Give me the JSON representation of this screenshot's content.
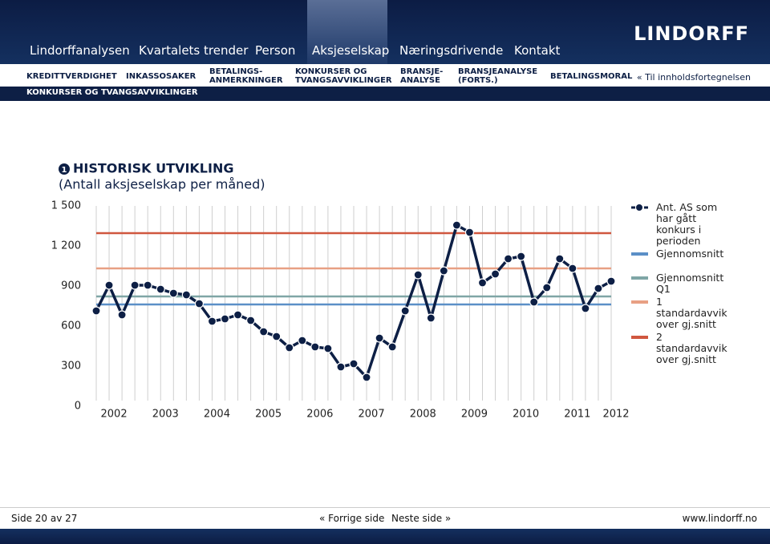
{
  "nav": {
    "links": [
      "Lindorffanalysen",
      "Kvartalets trender",
      "Person",
      "Aksjeselskap",
      "Næringsdrivende",
      "Kontakt"
    ],
    "active": 3
  },
  "logo": "LINDORFF",
  "subnav": {
    "items": [
      [
        "KREDITTVERDIGHET"
      ],
      [
        "INKASSOSAKER"
      ],
      [
        "BETALINGS-",
        "ANMERKNINGER"
      ],
      [
        "KONKURSER OG",
        "TVANGSAVVIKLINGER"
      ],
      [
        "BRANSJE-",
        "ANALYSE"
      ],
      [
        "BRANSJEANALYSE",
        "(FORTS.)"
      ],
      [
        "BETALINGSMORAL"
      ]
    ],
    "back": "« Til innholdsfortegnelsen"
  },
  "section": "KONKURSER OG TVANGSAVVIKLINGER",
  "chart_data": {
    "type": "line",
    "number": "1",
    "title": "HISTORISK UTVIKLING",
    "subtitle": "(Antall aksjeselskap per måned)",
    "categories": [
      null,
      "2002",
      null,
      null,
      null,
      "2003",
      null,
      null,
      null,
      "2004",
      null,
      null,
      null,
      "2005",
      null,
      null,
      null,
      "2006",
      null,
      null,
      null,
      "2007",
      null,
      null,
      null,
      "2008",
      null,
      null,
      null,
      "2009",
      null,
      null,
      null,
      "2010",
      null,
      null,
      null,
      "2011",
      null,
      null,
      "2012"
    ],
    "series": [
      {
        "name": "Ant. AS som har gått konkurs i perioden",
        "color": "#0d1f45",
        "values": [
          714,
          906,
          684,
          906,
          906,
          876,
          846,
          834,
          768,
          636,
          654,
          684,
          642,
          558,
          522,
          438,
          492,
          444,
          432,
          294,
          318,
          216,
          510,
          444,
          714,
          984,
          660,
          1014,
          1356,
          1302,
          924,
          990,
          1104,
          1122,
          780,
          888,
          1104,
          1032,
          732,
          882,
          936
        ]
      }
    ],
    "reference_lines": [
      {
        "name": "Gjennomsnitt",
        "color": "#5b8fc7",
        "value": 762
      },
      {
        "name": "Gjennomsnitt Q1",
        "color": "#7fa6a6",
        "value": 822
      },
      {
        "name": "1 standardavvik over gj.snitt",
        "color": "#e8a084",
        "value": 1032
      },
      {
        "name": "2 standardavvik over gj.snitt",
        "color": "#d0573f",
        "value": 1296
      }
    ],
    "ylim": [
      0,
      1500
    ],
    "yticks": [
      0,
      300,
      600,
      900,
      {
        "value": 1200,
        "label": "1 200"
      },
      {
        "value": 1500,
        "label": "1 500"
      }
    ],
    "grid": true
  },
  "footer": {
    "page": "Side 20 av 27",
    "prev": "« Forrige side",
    "next": "Neste side »",
    "url": "www.lindorff.no"
  }
}
